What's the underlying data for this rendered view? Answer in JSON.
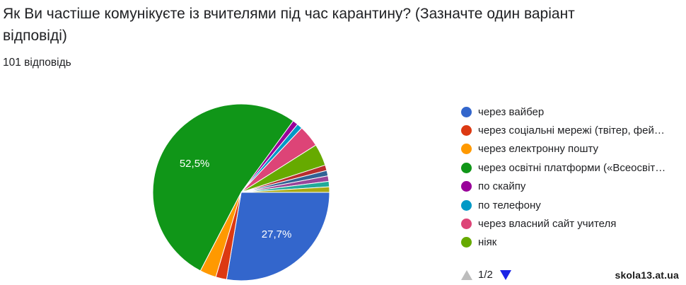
{
  "question": {
    "title": "Як Ви частіше комунікуєте із вчителями під час карантину? (Зазначте один варіант відповіді)",
    "count": "101 відповідь"
  },
  "chart_data": {
    "type": "pie",
    "slices": [
      {
        "label": "через вайбер",
        "percent": 27.7,
        "color": "#3366cc",
        "display": "27,7%"
      },
      {
        "label": "через соціальні мережі (твітер, фей…",
        "percent": 2.0,
        "color": "#dc3912",
        "display": ""
      },
      {
        "label": "через електронну пошту",
        "percent": 3.0,
        "color": "#ff9900",
        "display": ""
      },
      {
        "label": "через освітні платформи («Всеосвіт…",
        "percent": 52.5,
        "color": "#109618",
        "display": "52,5%"
      },
      {
        "label": "по скайпу",
        "percent": 1.0,
        "color": "#990099",
        "display": ""
      },
      {
        "label": "по телефону",
        "percent": 1.0,
        "color": "#0099c6",
        "display": ""
      },
      {
        "label": "через власний сайт учителя",
        "percent": 4.0,
        "color": "#dd4477",
        "display": ""
      },
      {
        "label": "ніяк",
        "percent": 4.0,
        "color": "#66aa00",
        "display": ""
      },
      {
        "label": "",
        "percent": 1.0,
        "color": "#b82e2e",
        "display": ""
      },
      {
        "label": "",
        "percent": 1.0,
        "color": "#316395",
        "display": ""
      },
      {
        "label": "",
        "percent": 1.0,
        "color": "#994499",
        "display": ""
      },
      {
        "label": "",
        "percent": 1.0,
        "color": "#22aa99",
        "display": ""
      },
      {
        "label": "",
        "percent": 1.0,
        "color": "#aaaa11",
        "display": ""
      }
    ]
  },
  "legend": [
    {
      "label": "через вайбер",
      "color": "#3366cc"
    },
    {
      "label": "через соціальні мережі (твітер, фей…",
      "color": "#dc3912"
    },
    {
      "label": "через електронну пошту",
      "color": "#ff9900"
    },
    {
      "label": "через освітні платформи («Всеосвіт…",
      "color": "#109618"
    },
    {
      "label": "по скайпу",
      "color": "#990099"
    },
    {
      "label": "по телефону",
      "color": "#0099c6"
    },
    {
      "label": "через власний сайт учителя",
      "color": "#dd4477"
    },
    {
      "label": "ніяк",
      "color": "#66aa00"
    }
  ],
  "pager": {
    "text": "1/2",
    "prev_icon": "triangle-up-icon",
    "next_icon": "triangle-down-icon"
  },
  "watermark": "skola13.at.ua"
}
